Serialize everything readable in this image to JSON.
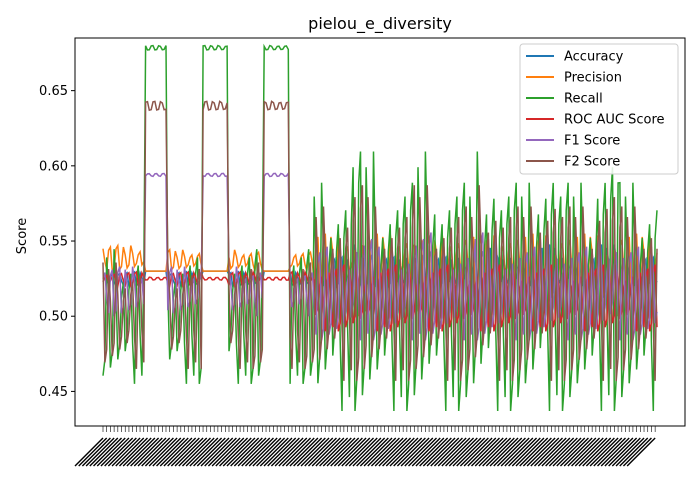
{
  "chart_data": {
    "type": "line",
    "title": "pielou_e_diversity",
    "xlabel": "",
    "ylabel": "Score",
    "ylim": [
      0.427,
      0.685
    ],
    "yticks": [
      0.45,
      0.5,
      0.55,
      0.6,
      0.65
    ],
    "ytick_labels": [
      "0.45",
      "0.50",
      "0.55",
      "0.60",
      "0.65"
    ],
    "x_points": 300,
    "grid": false,
    "legend_position": "top-right",
    "series": [
      {
        "name": "Accuracy",
        "color": "#1f77b4",
        "low": [
          0.52,
          0.53,
          0.52,
          0.52,
          0.51
        ],
        "high": [
          0.53,
          0.53,
          0.53,
          0.54,
          0.55
        ]
      },
      {
        "name": "Precision",
        "color": "#ff7f0e",
        "low": [
          0.53,
          0.53,
          0.53,
          0.52,
          0.5
        ],
        "high": [
          0.548,
          0.53,
          0.545,
          0.557,
          0.557
        ]
      },
      {
        "name": "Recall",
        "color": "#2ca02c",
        "low": [
          0.455,
          0.677,
          0.455,
          0.437,
          0.437
        ],
        "high": [
          0.55,
          0.68,
          0.55,
          0.598,
          0.62
        ]
      },
      {
        "name": "ROC AUC Score",
        "color": "#d62728",
        "low": [
          0.52,
          0.524,
          0.52,
          0.49,
          0.49
        ],
        "high": [
          0.53,
          0.526,
          0.53,
          0.537,
          0.537
        ]
      },
      {
        "name": "F1 Score",
        "color": "#9467bd",
        "low": [
          0.5,
          0.593,
          0.5,
          0.484,
          0.484
        ],
        "high": [
          0.535,
          0.595,
          0.535,
          0.55,
          0.56
        ]
      },
      {
        "name": "F2 Score",
        "color": "#8c564b",
        "low": [
          0.465,
          0.637,
          0.465,
          0.457,
          0.457
        ],
        "high": [
          0.54,
          0.643,
          0.54,
          0.58,
          0.595
        ]
      }
    ]
  }
}
